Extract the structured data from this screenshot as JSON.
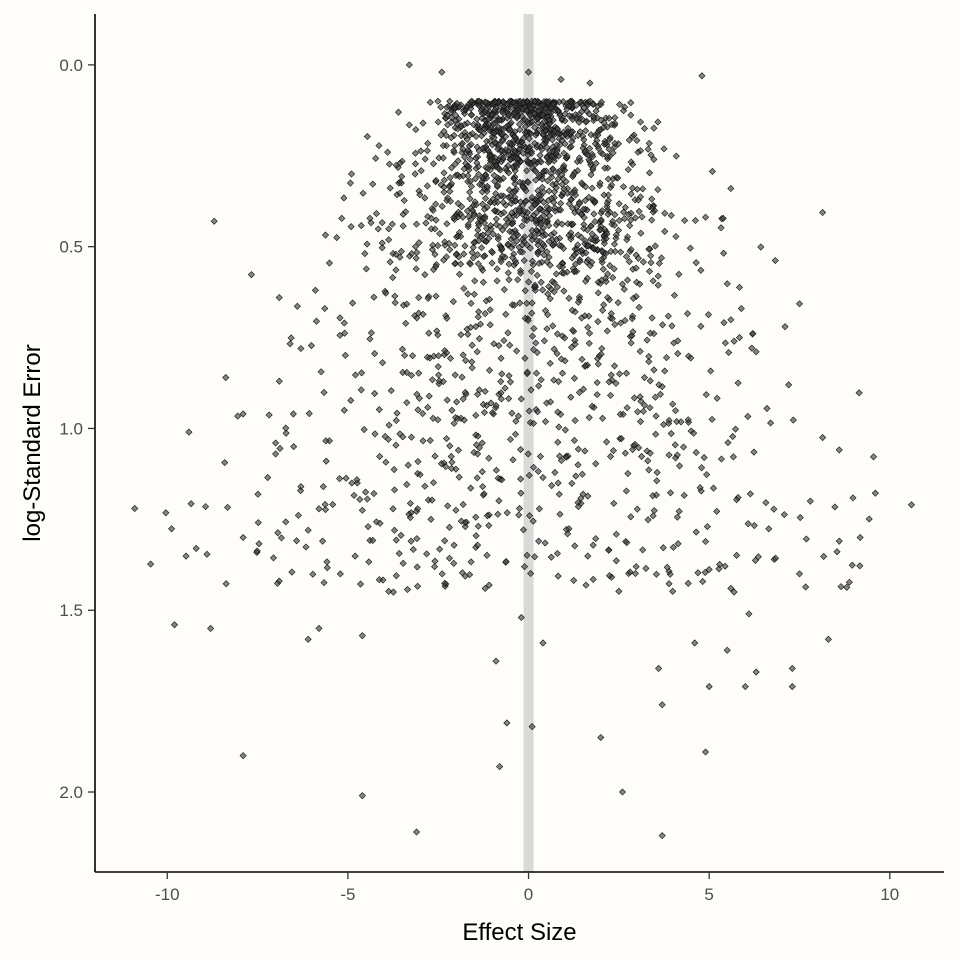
{
  "chart_data": {
    "type": "scatter",
    "title": "",
    "xlabel": "Effect Size",
    "ylabel": "log-Standard Error",
    "xlim": [
      -12,
      11.5
    ],
    "ylim": [
      2.22,
      -0.14
    ],
    "y_reversed": true,
    "x_ticks": [
      -10,
      -5,
      0,
      5,
      10
    ],
    "x_tick_labels": [
      "-10",
      "-5",
      "0",
      "5",
      "10"
    ],
    "y_ticks": [
      0.0,
      0.5,
      1.0,
      1.5,
      2.0
    ],
    "y_tick_labels": [
      "0.0",
      "0.5",
      "1.0",
      "1.5",
      "2.0"
    ],
    "reference_line": {
      "x": 0,
      "color": "#d9d9d9"
    },
    "grid": false,
    "legend": "none",
    "point_color": "#3c3c3c",
    "background": "#fffdf9",
    "n_points": 2200,
    "points": [
      [
        -10.9,
        1.22
      ],
      [
        -9.8,
        1.54
      ],
      [
        -9.4,
        1.01
      ],
      [
        -9.2,
        1.33
      ],
      [
        -8.8,
        1.55
      ],
      [
        -8.7,
        0.43
      ],
      [
        -7.9,
        1.3
      ],
      [
        -7.9,
        1.9
      ],
      [
        -7.9,
        0.96
      ],
      [
        -7.0,
        1.04
      ],
      [
        -7.0,
        1.07
      ],
      [
        -6.9,
        0.87
      ],
      [
        -6.9,
        1.42
      ],
      [
        -6.9,
        0.64
      ],
      [
        -6.5,
        1.05
      ],
      [
        -6.3,
        0.78
      ],
      [
        -6.3,
        1.16
      ],
      [
        -6.1,
        1.28
      ],
      [
        -6.1,
        1.58
      ],
      [
        -5.9,
        0.62
      ],
      [
        -5.8,
        1.55
      ],
      [
        -5.7,
        1.31
      ],
      [
        -5.6,
        1.09
      ],
      [
        -5.1,
        0.71
      ],
      [
        -5.1,
        0.95
      ],
      [
        -4.9,
        0.3
      ],
      [
        -4.6,
        2.01
      ],
      [
        -4.6,
        1.57
      ],
      [
        -3.9,
        0.24
      ],
      [
        -3.3,
        0.0
      ],
      [
        -3.1,
        2.11
      ],
      [
        -2.4,
        0.02
      ],
      [
        -1.6,
        0.12
      ],
      [
        -0.9,
        1.64
      ],
      [
        -0.8,
        1.93
      ],
      [
        -0.6,
        1.81
      ],
      [
        -0.2,
        1.52
      ],
      [
        0.0,
        0.02
      ],
      [
        0.1,
        1.82
      ],
      [
        0.4,
        1.59
      ],
      [
        0.9,
        0.04
      ],
      [
        1.7,
        0.05
      ],
      [
        2.0,
        1.85
      ],
      [
        2.6,
        2.0
      ],
      [
        3.6,
        1.66
      ],
      [
        3.7,
        2.12
      ],
      [
        3.7,
        1.76
      ],
      [
        4.8,
        0.03
      ],
      [
        4.9,
        1.89
      ],
      [
        5.0,
        1.71
      ],
      [
        5.5,
        1.61
      ],
      [
        6.0,
        1.71
      ],
      [
        6.3,
        1.67
      ],
      [
        7.2,
        0.88
      ],
      [
        7.3,
        1.66
      ],
      [
        7.3,
        1.71
      ],
      [
        7.5,
        1.4
      ],
      [
        7.8,
        1.2
      ],
      [
        8.3,
        1.58
      ],
      [
        8.6,
        1.31
      ],
      [
        10.6,
        1.21
      ],
      [
        5.6,
        0.34
      ],
      [
        7.1,
        0.72
      ],
      [
        6.2,
        0.74
      ],
      [
        5.6,
        1.44
      ],
      [
        6.1,
        1.51
      ],
      [
        4.6,
        1.59
      ],
      [
        5.8,
        1.19
      ],
      [
        6.8,
        1.36
      ]
    ]
  }
}
